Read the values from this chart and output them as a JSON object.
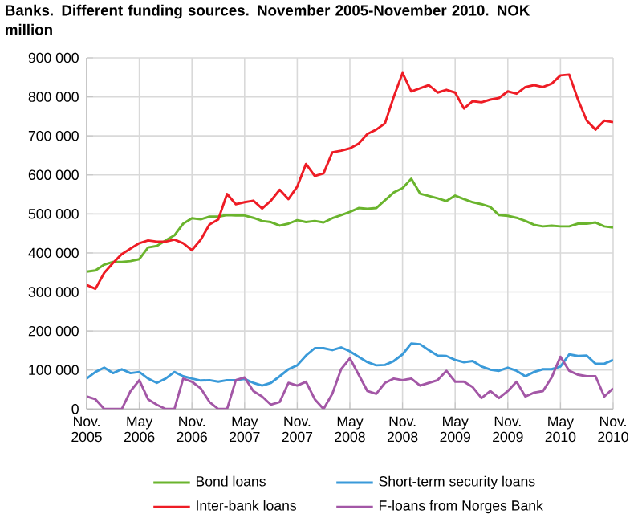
{
  "chart_data": {
    "type": "line",
    "title": "Banks. Different funding sources. November 2005-November 2010. NOK million",
    "x": [
      "2005-11",
      "2005-12",
      "2006-01",
      "2006-02",
      "2006-03",
      "2006-04",
      "2006-05",
      "2006-06",
      "2006-07",
      "2006-08",
      "2006-09",
      "2006-10",
      "2006-11",
      "2006-12",
      "2007-01",
      "2007-02",
      "2007-03",
      "2007-04",
      "2007-05",
      "2007-06",
      "2007-07",
      "2007-08",
      "2007-09",
      "2007-10",
      "2007-11",
      "2007-12",
      "2008-01",
      "2008-02",
      "2008-03",
      "2008-04",
      "2008-05",
      "2008-06",
      "2008-07",
      "2008-08",
      "2008-09",
      "2008-10",
      "2008-11",
      "2008-12",
      "2009-01",
      "2009-02",
      "2009-03",
      "2009-04",
      "2009-05",
      "2009-06",
      "2009-07",
      "2009-08",
      "2009-09",
      "2009-10",
      "2009-11",
      "2009-12",
      "2010-01",
      "2010-02",
      "2010-03",
      "2010-04",
      "2010-05",
      "2010-06",
      "2010-07",
      "2010-08",
      "2010-09",
      "2010-10",
      "2010-11"
    ],
    "series": [
      {
        "name": "Bond loans",
        "color": "#6ab42d",
        "values": [
          352000,
          355000,
          370000,
          377000,
          377000,
          379000,
          384000,
          414000,
          418000,
          432000,
          445000,
          475000,
          489000,
          486000,
          493000,
          493000,
          497000,
          496000,
          496000,
          490000,
          482000,
          479000,
          470000,
          475000,
          484000,
          479000,
          482000,
          478000,
          489000,
          497000,
          505000,
          515000,
          513000,
          515000,
          535000,
          555000,
          566000,
          590000,
          552000,
          546000,
          540000,
          533000,
          547000,
          538000,
          530000,
          525000,
          518000,
          497000,
          495000,
          490000,
          482000,
          472000,
          468000,
          470000,
          468000,
          468000,
          475000,
          475000,
          478000,
          468000,
          465000
        ]
      },
      {
        "name": "Short-term security loans",
        "color": "#3a9ad9",
        "values": [
          78000,
          95000,
          106000,
          92000,
          102000,
          92000,
          95000,
          78000,
          67000,
          78000,
          95000,
          84000,
          78000,
          73000,
          74000,
          70000,
          74000,
          74000,
          77000,
          67000,
          60000,
          67000,
          84000,
          102000,
          112000,
          137000,
          156000,
          156000,
          151000,
          158000,
          148000,
          134000,
          120000,
          112000,
          113000,
          123000,
          140000,
          168000,
          166000,
          151000,
          137000,
          136000,
          126000,
          120000,
          123000,
          109000,
          101000,
          98000,
          106000,
          98000,
          84000,
          95000,
          102000,
          102000,
          109000,
          140000,
          136000,
          137000,
          116000,
          116000,
          126000
        ]
      },
      {
        "name": "Inter-bank loans",
        "color": "#ee1c25",
        "values": [
          318000,
          308000,
          349000,
          374000,
          397000,
          411000,
          425000,
          432000,
          429000,
          429000,
          434000,
          425000,
          407000,
          434000,
          473000,
          486000,
          551000,
          525000,
          530000,
          534000,
          514000,
          534000,
          562000,
          538000,
          570000,
          628000,
          597000,
          604000,
          658000,
          662000,
          668000,
          680000,
          705000,
          716000,
          732000,
          800000,
          861000,
          814000,
          822000,
          830000,
          811000,
          818000,
          811000,
          770000,
          789000,
          786000,
          793000,
          797000,
          814000,
          808000,
          825000,
          830000,
          825000,
          834000,
          855000,
          857000,
          793000,
          739000,
          716000,
          739000,
          735000
        ]
      },
      {
        "name": "F-loans from Norges Bank",
        "color": "#a357a6",
        "values": [
          32000,
          25000,
          0,
          0,
          0,
          46000,
          74000,
          25000,
          11000,
          0,
          0,
          78000,
          70000,
          53000,
          18000,
          0,
          0,
          74000,
          81000,
          46000,
          32000,
          11000,
          18000,
          67000,
          60000,
          70000,
          25000,
          0,
          39000,
          102000,
          130000,
          88000,
          46000,
          39000,
          67000,
          78000,
          74000,
          78000,
          60000,
          67000,
          74000,
          98000,
          70000,
          70000,
          56000,
          28000,
          46000,
          28000,
          46000,
          70000,
          32000,
          42000,
          46000,
          81000,
          134000,
          98000,
          88000,
          84000,
          84000,
          32000,
          53000
        ]
      }
    ],
    "xlim": [
      "2005-11",
      "2010-11"
    ],
    "xticks": [
      {
        "value": "2005-11",
        "label": "Nov. 2005"
      },
      {
        "value": "2006-05",
        "label": "May 2006"
      },
      {
        "value": "2006-11",
        "label": "Nov. 2006"
      },
      {
        "value": "2007-05",
        "label": "May 2007"
      },
      {
        "value": "2007-11",
        "label": "Nov. 2007"
      },
      {
        "value": "2008-05",
        "label": "May 2008"
      },
      {
        "value": "2008-11",
        "label": "Nov. 2008"
      },
      {
        "value": "2009-05",
        "label": "May 2009"
      },
      {
        "value": "2009-11",
        "label": "Nov. 2009"
      },
      {
        "value": "2010-05",
        "label": "May 2010"
      },
      {
        "value": "2010-11",
        "label": "Nov. 2010"
      }
    ],
    "ylim": [
      0,
      900000
    ],
    "yticks": [
      0,
      {
        "value": 100000,
        "label": "100 000"
      },
      {
        "value": 200000,
        "label": "200 000"
      },
      {
        "value": 300000,
        "label": "300 000"
      },
      {
        "value": 400000,
        "label": "400 000"
      },
      {
        "value": 500000,
        "label": "500 000"
      },
      {
        "value": 600000,
        "label": "600 000"
      },
      {
        "value": 700000,
        "label": "700 000"
      },
      {
        "value": 800000,
        "label": "800 000"
      },
      {
        "value": 900000,
        "label": "900 000"
      }
    ],
    "grid": true,
    "legend": "bottom",
    "line_style": "solid",
    "marker": "none"
  }
}
